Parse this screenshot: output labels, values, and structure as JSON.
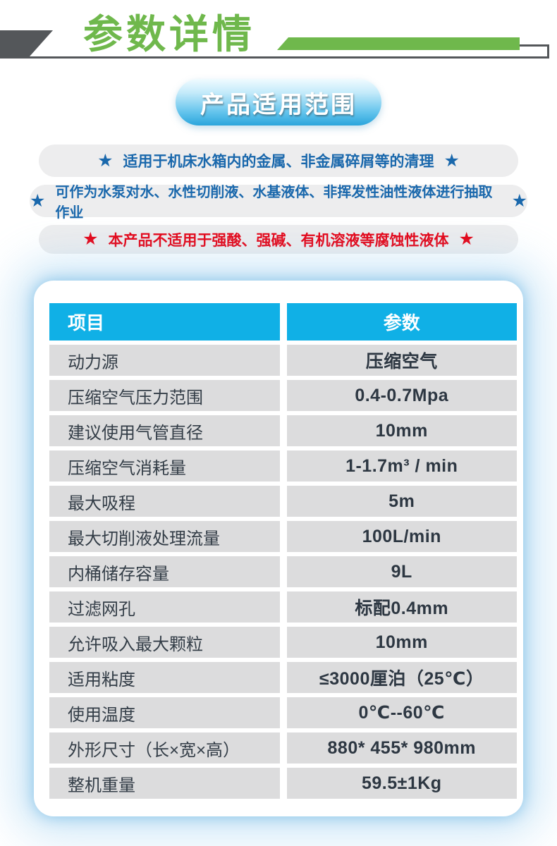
{
  "header": {
    "title": "参数详情"
  },
  "badge": {
    "label": "产品适用范围"
  },
  "icons": {
    "star": "★"
  },
  "notices": [
    {
      "text": "适用于机床水箱内的金属、非金属碎屑等的清理",
      "color": "blue"
    },
    {
      "text": "可作为水泵对水、水性切削液、水基液体、非挥发性油性液体进行抽取作业",
      "color": "blue"
    },
    {
      "text": "本产品不适用于强酸、强碱、有机溶液等腐蚀性液体",
      "color": "red"
    }
  ],
  "table": {
    "headers": [
      "项目",
      "参数"
    ],
    "rows": [
      [
        "动力源",
        "压缩空气"
      ],
      [
        "压缩空气压力范围",
        "0.4-0.7Mpa"
      ],
      [
        "建议使用气管直径",
        "10mm"
      ],
      [
        "压缩空气消耗量",
        "1-1.7m³ / min"
      ],
      [
        "最大吸程",
        "5m"
      ],
      [
        "最大切削液处理流量",
        "100L/min"
      ],
      [
        "内桶储存容量",
        "9L"
      ],
      [
        "过滤网孔",
        "标配0.4mm"
      ],
      [
        "允许吸入最大颗粒",
        "10mm"
      ],
      [
        "适用粘度",
        "≤3000厘泊（25℃）"
      ],
      [
        "使用温度",
        "0℃--60℃"
      ],
      [
        "外形尺寸（长×宽×高）",
        "880* 455* 980mm"
      ],
      [
        "整机重量",
        "59.5±1Kg"
      ]
    ]
  },
  "colors": {
    "title_green": "#6fb84c",
    "shape_dark_gray": "#54575a",
    "table_header_cyan": "#10b0e6",
    "row_gray": "#dcdcdd",
    "table_text": "#2d3742",
    "notice_blue": "#1a68ac",
    "notice_red": "#e60113",
    "badge_blue": "#2aa5dc"
  }
}
